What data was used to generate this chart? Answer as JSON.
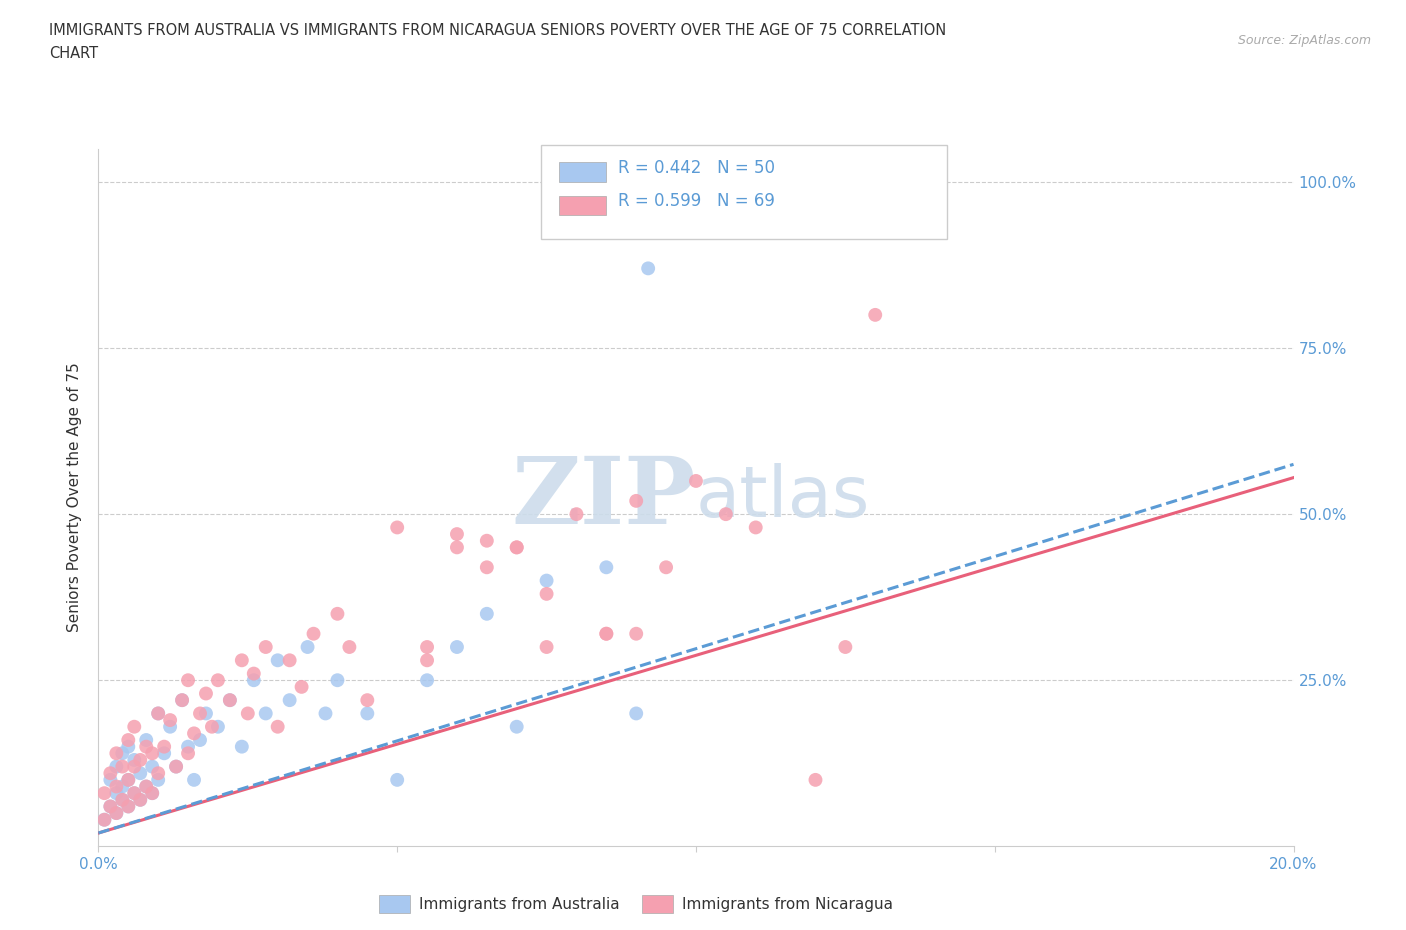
{
  "title_line1": "IMMIGRANTS FROM AUSTRALIA VS IMMIGRANTS FROM NICARAGUA SENIORS POVERTY OVER THE AGE OF 75 CORRELATION",
  "title_line2": "CHART",
  "source_text": "Source: ZipAtlas.com",
  "ylabel": "Seniors Poverty Over the Age of 75",
  "xlim": [
    0.0,
    0.2
  ],
  "ylim": [
    0.0,
    1.05
  ],
  "R_australia": 0.442,
  "N_australia": 50,
  "R_nicaragua": 0.599,
  "N_nicaragua": 69,
  "color_australia": "#a8c8f0",
  "color_nicaragua": "#f5a0b0",
  "color_australia_line": "#5b9bd5",
  "color_nicaragua_line": "#e8607a",
  "color_axis_text": "#5b9bd5",
  "watermark_color": "#cddceb",
  "aus_line_x0": 0.0,
  "aus_line_y0": 0.02,
  "aus_line_x1": 0.2,
  "aus_line_y1": 0.575,
  "nic_line_x0": 0.0,
  "nic_line_y0": 0.02,
  "nic_line_x1": 0.2,
  "nic_line_y1": 0.555,
  "australia_x": [
    0.001,
    0.002,
    0.002,
    0.003,
    0.003,
    0.003,
    0.004,
    0.004,
    0.004,
    0.005,
    0.005,
    0.005,
    0.006,
    0.006,
    0.007,
    0.007,
    0.008,
    0.008,
    0.009,
    0.009,
    0.01,
    0.01,
    0.011,
    0.012,
    0.013,
    0.014,
    0.015,
    0.016,
    0.017,
    0.018,
    0.02,
    0.022,
    0.024,
    0.026,
    0.028,
    0.03,
    0.032,
    0.035,
    0.038,
    0.04,
    0.045,
    0.05,
    0.055,
    0.06,
    0.065,
    0.07,
    0.075,
    0.085,
    0.09,
    0.092
  ],
  "australia_y": [
    0.04,
    0.06,
    0.1,
    0.05,
    0.08,
    0.12,
    0.07,
    0.09,
    0.14,
    0.06,
    0.1,
    0.15,
    0.08,
    0.13,
    0.07,
    0.11,
    0.09,
    0.16,
    0.08,
    0.12,
    0.1,
    0.2,
    0.14,
    0.18,
    0.12,
    0.22,
    0.15,
    0.1,
    0.16,
    0.2,
    0.18,
    0.22,
    0.15,
    0.25,
    0.2,
    0.28,
    0.22,
    0.3,
    0.2,
    0.25,
    0.2,
    0.1,
    0.25,
    0.3,
    0.35,
    0.18,
    0.4,
    0.42,
    0.2,
    0.87
  ],
  "nicaragua_x": [
    0.001,
    0.001,
    0.002,
    0.002,
    0.003,
    0.003,
    0.003,
    0.004,
    0.004,
    0.005,
    0.005,
    0.005,
    0.006,
    0.006,
    0.006,
    0.007,
    0.007,
    0.008,
    0.008,
    0.009,
    0.009,
    0.01,
    0.01,
    0.011,
    0.012,
    0.013,
    0.014,
    0.015,
    0.015,
    0.016,
    0.017,
    0.018,
    0.019,
    0.02,
    0.022,
    0.024,
    0.025,
    0.026,
    0.028,
    0.03,
    0.032,
    0.034,
    0.036,
    0.04,
    0.042,
    0.045,
    0.05,
    0.055,
    0.06,
    0.065,
    0.07,
    0.075,
    0.08,
    0.085,
    0.09,
    0.095,
    0.1,
    0.105,
    0.11,
    0.12,
    0.055,
    0.06,
    0.065,
    0.07,
    0.075,
    0.085,
    0.09,
    0.125,
    0.13
  ],
  "nicaragua_y": [
    0.04,
    0.08,
    0.06,
    0.11,
    0.05,
    0.09,
    0.14,
    0.07,
    0.12,
    0.06,
    0.1,
    0.16,
    0.08,
    0.12,
    0.18,
    0.07,
    0.13,
    0.09,
    0.15,
    0.08,
    0.14,
    0.11,
    0.2,
    0.15,
    0.19,
    0.12,
    0.22,
    0.14,
    0.25,
    0.17,
    0.2,
    0.23,
    0.18,
    0.25,
    0.22,
    0.28,
    0.2,
    0.26,
    0.3,
    0.18,
    0.28,
    0.24,
    0.32,
    0.35,
    0.3,
    0.22,
    0.48,
    0.3,
    0.47,
    0.42,
    0.45,
    0.38,
    0.5,
    0.32,
    0.52,
    0.42,
    0.55,
    0.5,
    0.48,
    0.1,
    0.28,
    0.45,
    0.46,
    0.45,
    0.3,
    0.32,
    0.32,
    0.3,
    0.8
  ]
}
